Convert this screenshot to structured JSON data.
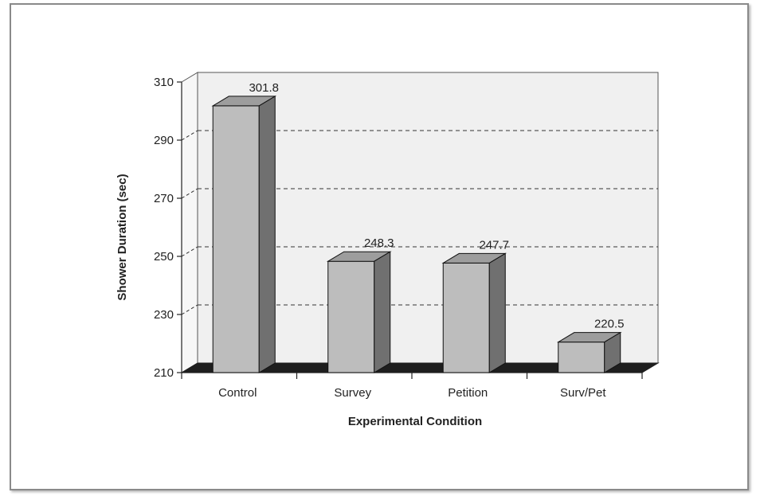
{
  "chart_data": {
    "type": "bar",
    "title": "",
    "xlabel": "Experimental Condition",
    "ylabel": "Shower Duration (sec)",
    "categories": [
      "Control",
      "Survey",
      "Petition",
      "Surv/Pet"
    ],
    "values": [
      301.8,
      248.3,
      247.7,
      220.5
    ],
    "value_labels": [
      "301.8",
      "248.3",
      "247.7",
      "220.5"
    ],
    "ylim": [
      210,
      310
    ],
    "yticks": [
      210,
      230,
      250,
      270,
      290,
      310
    ],
    "grid": true,
    "legend": "none",
    "style": "3d-bar",
    "colors": {
      "bar_front": "#bdbdbd",
      "bar_top": "#9d9d9d",
      "bar_side": "#707070",
      "floor": "#1e1e1e",
      "wall": "#f0f0f0"
    }
  }
}
